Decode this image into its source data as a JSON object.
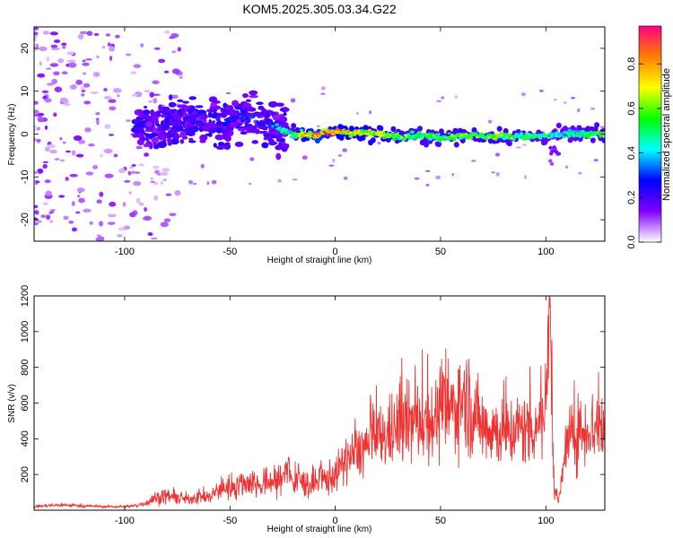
{
  "title": "KOM5.2025.305.03.34.G22",
  "chart_data": [
    {
      "type": "heatmap",
      "xlabel": "Height of straight line (km)",
      "ylabel": "Frequency (Hz)",
      "xlim": [
        -143,
        128
      ],
      "ylim": [
        -25,
        25
      ],
      "xticks": [
        -100,
        -50,
        0,
        50,
        100
      ],
      "yticks": [
        -20,
        -10,
        0,
        10,
        20
      ],
      "colorbar": {
        "label": "Normalized spectral amplitude",
        "range": [
          0,
          0.97
        ],
        "ticks": [
          0.0,
          0.2,
          0.4,
          0.6,
          0.8
        ],
        "colors": [
          "#ffffff",
          "#8000ff",
          "#0000ff",
          "#00ffff",
          "#00ff00",
          "#ffff00",
          "#ff8000",
          "#ff0080"
        ]
      },
      "ridge": {
        "x": [
          -90,
          -80,
          -70,
          -60,
          -50,
          -40,
          -30,
          -20,
          -10,
          0,
          10,
          20,
          30,
          40,
          50,
          60,
          70,
          80,
          90,
          100,
          110,
          120,
          128
        ],
        "frequency": [
          1.5,
          2,
          3,
          2.5,
          3,
          4,
          2,
          0,
          -0.2,
          0.5,
          0.3,
          0,
          -0.5,
          -0.3,
          -0.8,
          -0.3,
          -0.5,
          -0.5,
          -0.6,
          -0.5,
          0,
          0,
          0
        ],
        "amplitude": [
          0.2,
          0.22,
          0.25,
          0.25,
          0.3,
          0.3,
          0.35,
          0.55,
          0.9,
          0.8,
          0.75,
          0.7,
          0.6,
          0.55,
          0.55,
          0.6,
          0.6,
          0.6,
          0.55,
          0.5,
          0.45,
          0.55,
          0.6
        ]
      }
    },
    {
      "type": "line",
      "xlabel": "Height of straight line (km)",
      "ylabel": "SNR (v/v)",
      "xlim": [
        -143,
        128
      ],
      "ylim": [
        0,
        1200
      ],
      "xticks": [
        -100,
        -50,
        0,
        50,
        100
      ],
      "yticks": [
        200,
        400,
        600,
        800,
        1000,
        1200
      ],
      "color": "#ee3333",
      "series": [
        {
          "x": [
            -143,
            -130,
            -120,
            -110,
            -100,
            -95,
            -90,
            -85,
            -80,
            -75,
            -70,
            -65,
            -60,
            -55,
            -50,
            -45,
            -40,
            -35,
            -30,
            -25,
            -22,
            -20,
            -18,
            -15,
            -10,
            -5,
            0,
            5,
            10,
            15,
            20,
            25,
            30,
            35,
            40,
            45,
            50,
            55,
            60,
            62,
            65,
            70,
            75,
            80,
            85,
            90,
            95,
            100,
            102,
            104,
            106,
            110,
            115,
            120,
            125,
            128
          ],
          "y": [
            20,
            30,
            25,
            20,
            20,
            25,
            40,
            70,
            80,
            70,
            60,
            80,
            70,
            120,
            130,
            150,
            160,
            140,
            170,
            160,
            300,
            120,
            180,
            150,
            140,
            170,
            200,
            280,
            320,
            360,
            400,
            420,
            470,
            480,
            500,
            510,
            520,
            560,
            620,
            640,
            540,
            480,
            460,
            420,
            450,
            460,
            470,
            560,
            1200,
            120,
            40,
            380,
            430,
            460,
            470,
            430
          ]
        }
      ]
    }
  ]
}
